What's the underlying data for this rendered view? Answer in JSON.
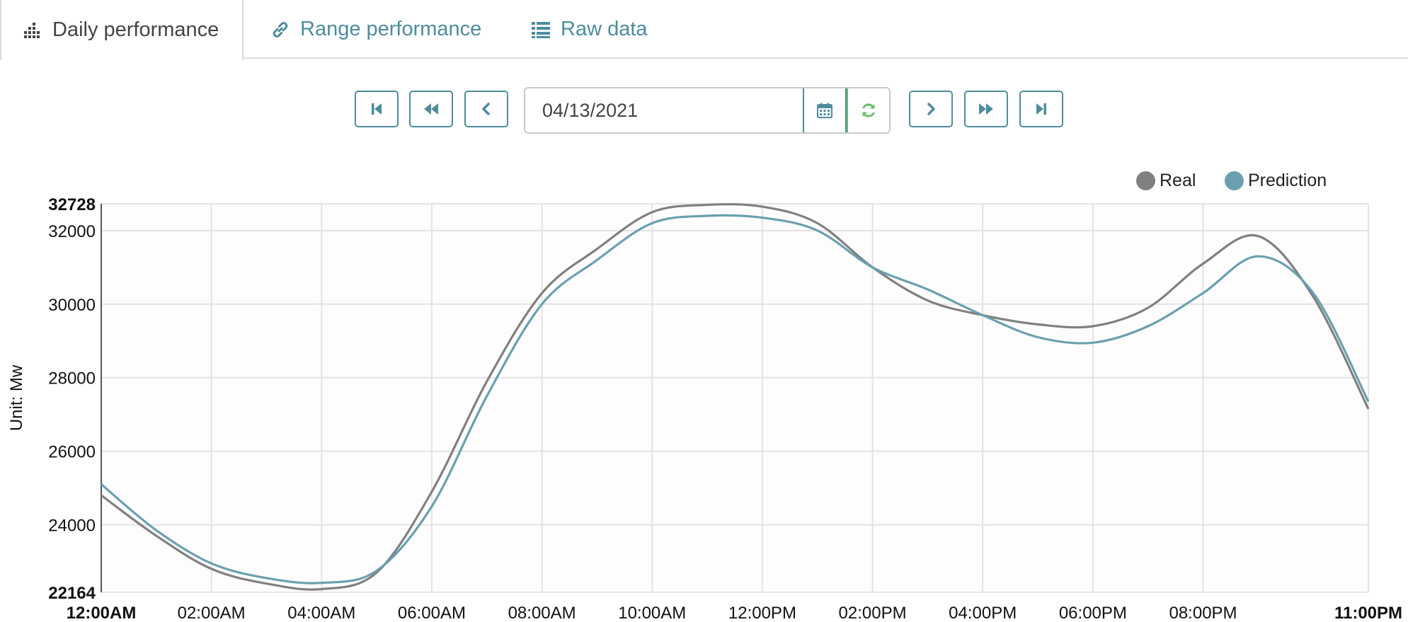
{
  "tabs": [
    {
      "label": "Daily performance",
      "icon": "bar-chart-icon",
      "active": true
    },
    {
      "label": "Range performance",
      "icon": "link-icon",
      "active": false
    },
    {
      "label": "Raw data",
      "icon": "list-icon",
      "active": false
    }
  ],
  "date_picker": {
    "value": "04/13/2021",
    "calendar_icon": "calendar-icon",
    "refresh_icon": "refresh-icon"
  },
  "nav_buttons": {
    "first": "step-backward-icon",
    "fast_back": "fast-backward-icon",
    "back": "chevron-left-icon",
    "forward": "chevron-right-icon",
    "fast_forward": "fast-forward-icon",
    "last": "step-forward-icon"
  },
  "colors": {
    "accent": "#4e8c9c",
    "refresh": "#6abf69",
    "real": "#808080",
    "prediction": "#6a9fb0"
  },
  "chart_data": {
    "type": "line",
    "ylabel": "Unit: Mw",
    "ylim": [
      22164,
      32728
    ],
    "y_ticks": [
      "32728",
      "32000",
      "30000",
      "28000",
      "26000",
      "24000",
      "22164"
    ],
    "x_tick_labels": [
      "12:00AM",
      "02:00AM",
      "04:00AM",
      "06:00AM",
      "08:00AM",
      "10:00AM",
      "12:00PM",
      "02:00PM",
      "04:00PM",
      "06:00PM",
      "08:00PM",
      "11:00PM"
    ],
    "x_tick_hours": [
      0,
      2,
      4,
      6,
      8,
      10,
      12,
      14,
      16,
      18,
      20,
      23
    ],
    "grid": true,
    "legend_position": "top-right",
    "x_hours": [
      0,
      1,
      2,
      3,
      4,
      5,
      6,
      7,
      8,
      9,
      10,
      11,
      12,
      13,
      14,
      15,
      16,
      17,
      18,
      19,
      20,
      21,
      22,
      23
    ],
    "series": [
      {
        "name": "Real",
        "values": [
          24800,
          23700,
          22800,
          22400,
          22250,
          22700,
          24900,
          27900,
          30300,
          31500,
          32500,
          32700,
          32650,
          32200,
          31000,
          30100,
          29700,
          29450,
          29400,
          29900,
          31100,
          31850,
          30200,
          27150
        ]
      },
      {
        "name": "Prediction",
        "values": [
          25100,
          23850,
          22950,
          22550,
          22420,
          22750,
          24500,
          27500,
          30000,
          31200,
          32200,
          32400,
          32350,
          32000,
          31000,
          30400,
          29700,
          29100,
          28950,
          29400,
          30300,
          31300,
          30300,
          27350
        ]
      }
    ]
  }
}
